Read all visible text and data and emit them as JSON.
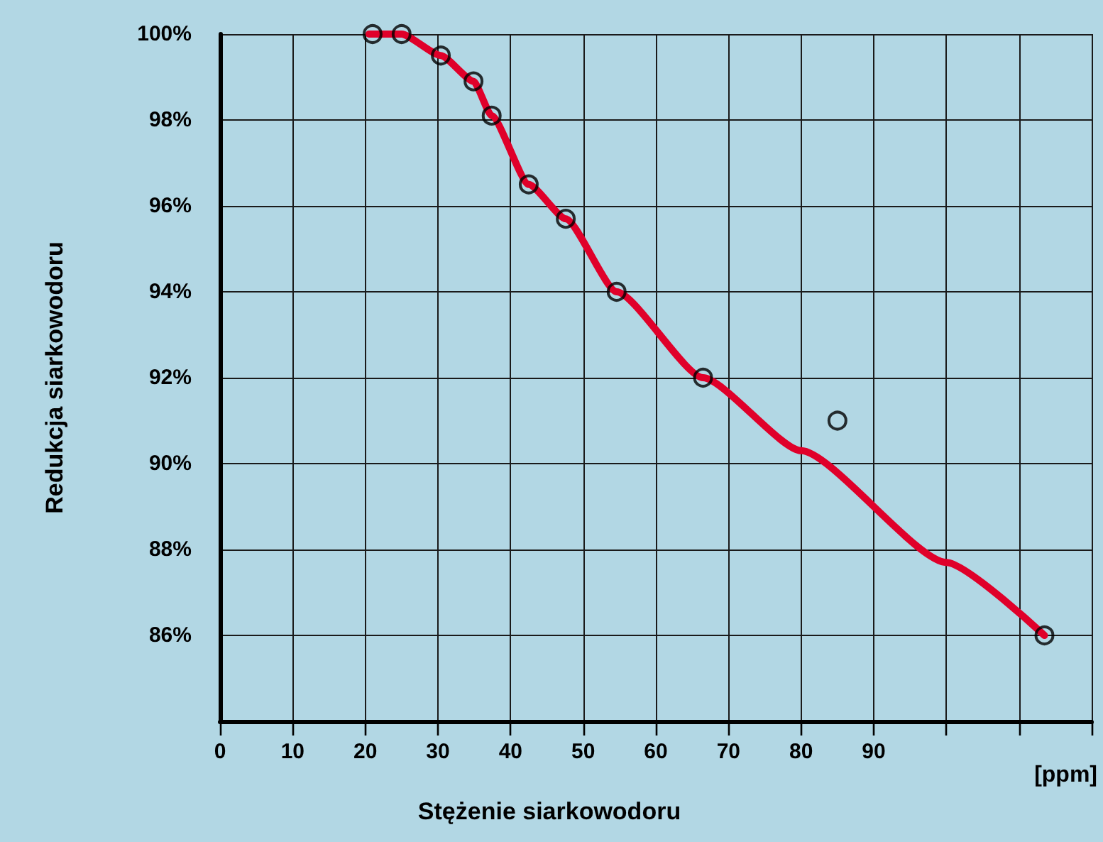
{
  "chart_data": {
    "type": "scatter",
    "xlabel": "Stężenie siarkowodoru",
    "ylabel": "Redukcja siarkowodoru",
    "annotations": [
      "[ppm]"
    ],
    "xlim": [
      0,
      120
    ],
    "xticks": [
      0,
      10,
      20,
      30,
      40,
      50,
      60,
      70,
      80,
      90,
      {
        "value": 100,
        "label": null
      },
      {
        "value": 110,
        "label": null
      },
      {
        "value": 120,
        "label": null
      }
    ],
    "ylim": [
      84,
      100
    ],
    "yticks": [
      {
        "value": 86,
        "label": "86%"
      },
      {
        "value": 88,
        "label": "88%"
      },
      {
        "value": 90,
        "label": "90%"
      },
      {
        "value": 92,
        "label": "92%"
      },
      {
        "value": 94,
        "label": "94%"
      },
      {
        "value": 96,
        "label": "96%"
      },
      {
        "value": 98,
        "label": "98%"
      },
      {
        "value": 100,
        "label": "100%"
      }
    ],
    "grid": true,
    "series": [
      {
        "type": "line",
        "color": "#e0002a",
        "marker": "none",
        "line_style": "solid",
        "x": [
          20.5,
          25,
          30.4,
          34.9,
          37.4,
          42.5,
          47.6,
          54.6,
          66.5,
          80,
          100,
          113.5
        ],
        "values": [
          100,
          100,
          99.5,
          98.9,
          98.1,
          96.5,
          95.7,
          94.0,
          92.0,
          90.3,
          87.7,
          86.0
        ]
      },
      {
        "color": "#000000",
        "marker": "circle",
        "x": [
          21,
          25,
          30.4,
          34.9,
          37.4,
          42.5,
          47.6,
          54.6,
          66.5,
          85,
          113.5
        ],
        "values": [
          100,
          100,
          99.5,
          98.9,
          98.1,
          96.5,
          95.7,
          94.0,
          92.0,
          91.0,
          86.0
        ]
      }
    ]
  }
}
